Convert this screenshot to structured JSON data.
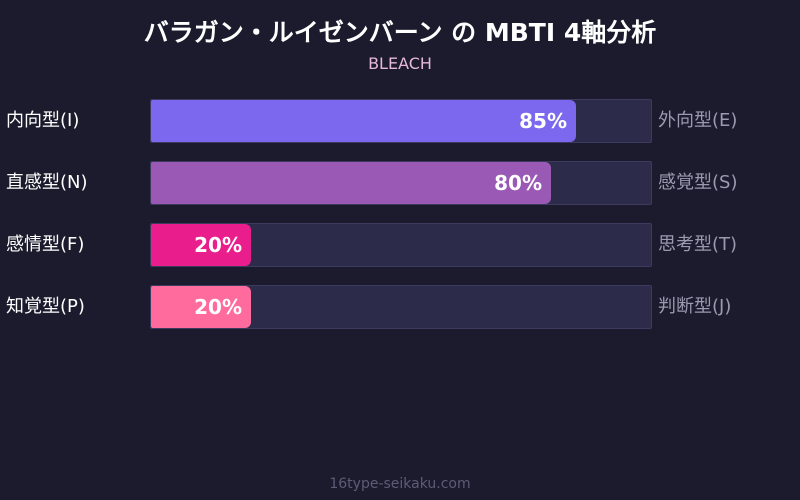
{
  "header": {
    "title": "バラガン・ルイゼンバーン の MBTI 4軸分析",
    "subtitle": "BLEACH"
  },
  "footer": {
    "site": "16type-seikaku.com"
  },
  "chart_data": {
    "type": "bar",
    "orientation": "horizontal",
    "title": "バラガン・ルイゼンバーン の MBTI 4軸分析",
    "subtitle": "BLEACH",
    "categories": [
      "内向型(I)",
      "直感型(N)",
      "感情型(F)",
      "知覚型(P)"
    ],
    "opposite_categories": [
      "外向型(E)",
      "感覚型(S)",
      "思考型(T)",
      "判断型(J)"
    ],
    "values": [
      85,
      80,
      20,
      20
    ],
    "value_labels": [
      "85%",
      "80%",
      "20%",
      "20%"
    ],
    "colors": [
      "#7b68ee",
      "#9b59b6",
      "#e91e8c",
      "#ff6b9d"
    ],
    "track_color": "#2d2b4a",
    "xlim": [
      0,
      100
    ],
    "unit": "%",
    "grid": false,
    "legend": "none"
  }
}
